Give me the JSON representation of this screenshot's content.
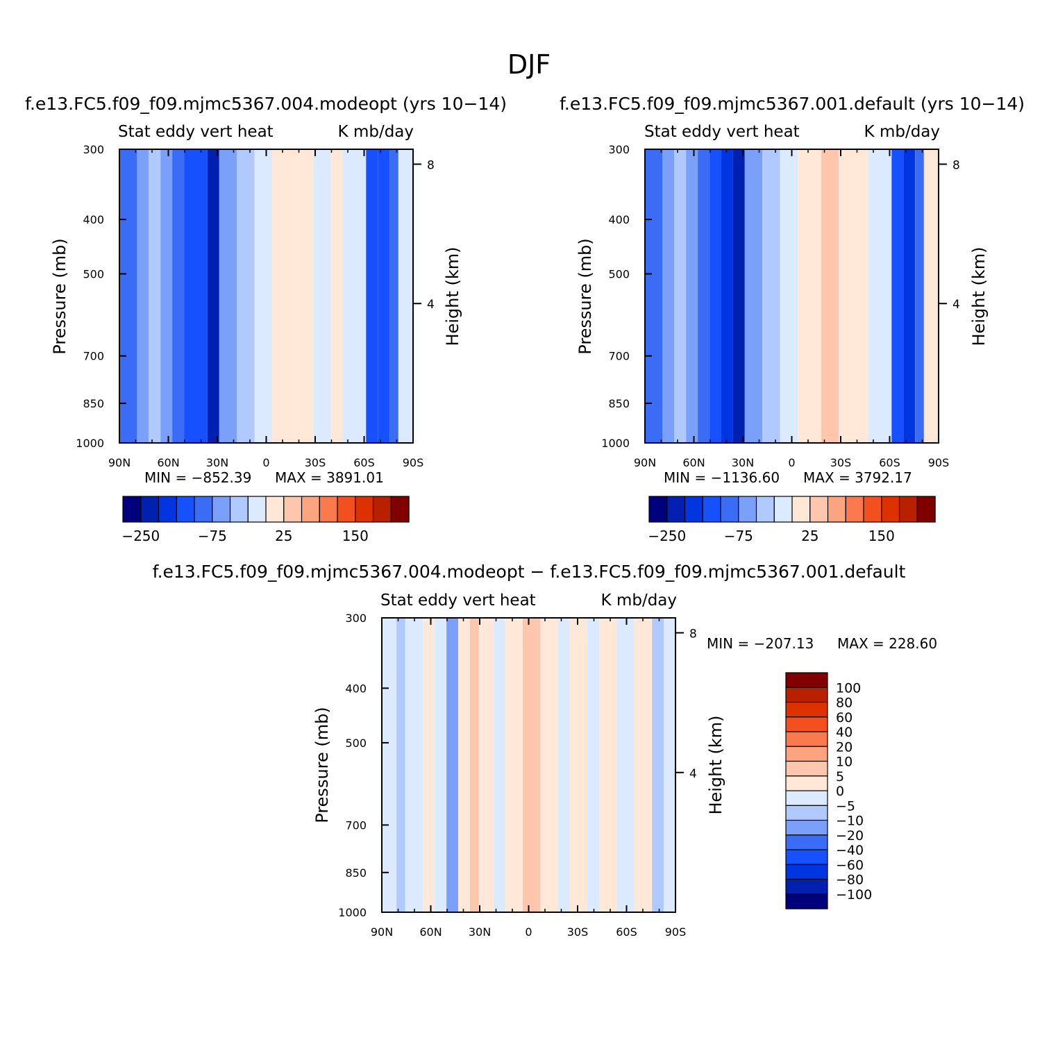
{
  "figure": {
    "title": "DJF"
  },
  "chart_data": [
    {
      "type": "heatmap",
      "title": "f.e13.FC5.f09_f09.mjmc5367.004.modeopt (yrs 10−14)",
      "left_label": "Stat eddy vert heat",
      "right_label": "K mb/day",
      "ylabel": "Pressure (mb)",
      "y2label": "Height (km)",
      "xticks": [
        "90N",
        "60N",
        "30N",
        "0",
        "30S",
        "60S",
        "90S"
      ],
      "yticks": [
        300,
        400,
        500,
        700,
        850,
        1000
      ],
      "y2ticks": [
        8,
        4
      ],
      "ylim": [
        300,
        1000
      ],
      "min_text": "MIN = −852.39",
      "max_text": "MAX = 3891.01",
      "colorbar": {
        "orientation": "horizontal",
        "labels": [
          "−250",
          "−75",
          "25",
          "150"
        ],
        "colors": [
          "#00007f",
          "#0020b0",
          "#0035e0",
          "#1650ff",
          "#3b6cf5",
          "#7aa0fa",
          "#b0c9ff",
          "#dbeaff",
          "#ffe8d8",
          "#fec7ad",
          "#fca380",
          "#fb7a4d",
          "#f44f1e",
          "#dd3200",
          "#b92000",
          "#800000"
        ]
      },
      "bands": [
        {
          "x0": 0,
          "x1": 6,
          "c": 4
        },
        {
          "x0": 6,
          "x1": 10,
          "c": 5
        },
        {
          "x0": 10,
          "x1": 14,
          "c": 6
        },
        {
          "x0": 14,
          "x1": 18,
          "c": 5
        },
        {
          "x0": 18,
          "x1": 22,
          "c": 4
        },
        {
          "x0": 22,
          "x1": 26,
          "c": 3
        },
        {
          "x0": 26,
          "x1": 30,
          "c": 3
        },
        {
          "x0": 30,
          "x1": 34,
          "c": 1
        },
        {
          "x0": 34,
          "x1": 40,
          "c": 5
        },
        {
          "x0": 40,
          "x1": 46,
          "c": 6
        },
        {
          "x0": 46,
          "x1": 52,
          "c": 7
        },
        {
          "x0": 52,
          "x1": 60,
          "c": 8
        },
        {
          "x0": 60,
          "x1": 66,
          "c": 8
        },
        {
          "x0": 66,
          "x1": 72,
          "c": 7
        },
        {
          "x0": 72,
          "x1": 76,
          "c": 8
        },
        {
          "x0": 76,
          "x1": 84,
          "c": 7
        },
        {
          "x0": 84,
          "x1": 88,
          "c": 3
        },
        {
          "x0": 88,
          "x1": 92,
          "c": 3
        },
        {
          "x0": 92,
          "x1": 95,
          "c": 4
        },
        {
          "x0": 95,
          "x1": 100,
          "c": 7
        }
      ]
    },
    {
      "type": "heatmap",
      "title": "f.e13.FC5.f09_f09.mjmc5367.001.default (yrs 10−14)",
      "left_label": "Stat eddy vert heat",
      "right_label": "K mb/day",
      "ylabel": "Pressure (mb)",
      "y2label": "Height (km)",
      "xticks": [
        "90N",
        "60N",
        "30N",
        "0",
        "30S",
        "60S",
        "90S"
      ],
      "yticks": [
        300,
        400,
        500,
        700,
        850,
        1000
      ],
      "y2ticks": [
        8,
        4
      ],
      "ylim": [
        300,
        1000
      ],
      "min_text": "MIN = −1136.60",
      "max_text": "MAX = 3792.17",
      "colorbar": {
        "orientation": "horizontal",
        "labels": [
          "−250",
          "−75",
          "25",
          "150"
        ],
        "colors": [
          "#00007f",
          "#0020b0",
          "#0035e0",
          "#1650ff",
          "#3b6cf5",
          "#7aa0fa",
          "#b0c9ff",
          "#dbeaff",
          "#ffe8d8",
          "#fec7ad",
          "#fca380",
          "#fb7a4d",
          "#f44f1e",
          "#dd3200",
          "#b92000",
          "#800000"
        ]
      },
      "bands": [
        {
          "x0": 0,
          "x1": 6,
          "c": 4
        },
        {
          "x0": 6,
          "x1": 10,
          "c": 5
        },
        {
          "x0": 10,
          "x1": 14,
          "c": 6
        },
        {
          "x0": 14,
          "x1": 18,
          "c": 5
        },
        {
          "x0": 18,
          "x1": 22,
          "c": 4
        },
        {
          "x0": 22,
          "x1": 26,
          "c": 3
        },
        {
          "x0": 26,
          "x1": 30,
          "c": 2
        },
        {
          "x0": 30,
          "x1": 34,
          "c": 1
        },
        {
          "x0": 34,
          "x1": 40,
          "c": 5
        },
        {
          "x0": 40,
          "x1": 46,
          "c": 6
        },
        {
          "x0": 46,
          "x1": 52,
          "c": 7
        },
        {
          "x0": 52,
          "x1": 60,
          "c": 8
        },
        {
          "x0": 60,
          "x1": 66,
          "c": 9
        },
        {
          "x0": 66,
          "x1": 72,
          "c": 8
        },
        {
          "x0": 72,
          "x1": 76,
          "c": 8
        },
        {
          "x0": 76,
          "x1": 84,
          "c": 7
        },
        {
          "x0": 84,
          "x1": 88,
          "c": 3
        },
        {
          "x0": 88,
          "x1": 92,
          "c": 2
        },
        {
          "x0": 92,
          "x1": 95,
          "c": 4
        },
        {
          "x0": 95,
          "x1": 100,
          "c": 8
        }
      ]
    },
    {
      "type": "heatmap",
      "title": "f.e13.FC5.f09_f09.mjmc5367.004.modeopt − f.e13.FC5.f09_f09.mjmc5367.001.default",
      "left_label": "Stat eddy vert heat",
      "right_label": "K mb/day",
      "ylabel": "Pressure (mb)",
      "y2label": "Height (km)",
      "xticks": [
        "90N",
        "60N",
        "30N",
        "0",
        "30S",
        "60S",
        "90S"
      ],
      "yticks": [
        300,
        400,
        500,
        700,
        850,
        1000
      ],
      "y2ticks": [
        8,
        4
      ],
      "ylim": [
        300,
        1000
      ],
      "min_text": "MIN = −207.13",
      "max_text": "MAX = 228.60",
      "colorbar": {
        "orientation": "vertical",
        "labels": [
          "100",
          "80",
          "60",
          "40",
          "20",
          "10",
          "5",
          "0",
          "−5",
          "−10",
          "−20",
          "−40",
          "−60",
          "−80",
          "−100"
        ],
        "colors": [
          "#800000",
          "#b92000",
          "#dd3200",
          "#f44f1e",
          "#fb7a4d",
          "#fca380",
          "#fec7ad",
          "#ffe8d8",
          "#dbeaff",
          "#b0c9ff",
          "#7aa0fa",
          "#3b6cf5",
          "#1650ff",
          "#0035e0",
          "#0020b0",
          "#00007f"
        ]
      },
      "bands": [
        {
          "x0": 0,
          "x1": 5,
          "c": 7
        },
        {
          "x0": 5,
          "x1": 8,
          "c": 6
        },
        {
          "x0": 8,
          "x1": 14,
          "c": 7
        },
        {
          "x0": 14,
          "x1": 18,
          "c": 8
        },
        {
          "x0": 18,
          "x1": 22,
          "c": 7
        },
        {
          "x0": 22,
          "x1": 26,
          "c": 5
        },
        {
          "x0": 26,
          "x1": 30,
          "c": 8
        },
        {
          "x0": 30,
          "x1": 33,
          "c": 9
        },
        {
          "x0": 33,
          "x1": 38,
          "c": 8
        },
        {
          "x0": 38,
          "x1": 42,
          "c": 7
        },
        {
          "x0": 42,
          "x1": 48,
          "c": 8
        },
        {
          "x0": 48,
          "x1": 54,
          "c": 9
        },
        {
          "x0": 54,
          "x1": 60,
          "c": 8
        },
        {
          "x0": 60,
          "x1": 64,
          "c": 7
        },
        {
          "x0": 64,
          "x1": 70,
          "c": 8
        },
        {
          "x0": 70,
          "x1": 74,
          "c": 7
        },
        {
          "x0": 74,
          "x1": 80,
          "c": 8
        },
        {
          "x0": 80,
          "x1": 86,
          "c": 7
        },
        {
          "x0": 86,
          "x1": 92,
          "c": 8
        },
        {
          "x0": 92,
          "x1": 96,
          "c": 6
        },
        {
          "x0": 96,
          "x1": 100,
          "c": 7
        }
      ]
    }
  ]
}
